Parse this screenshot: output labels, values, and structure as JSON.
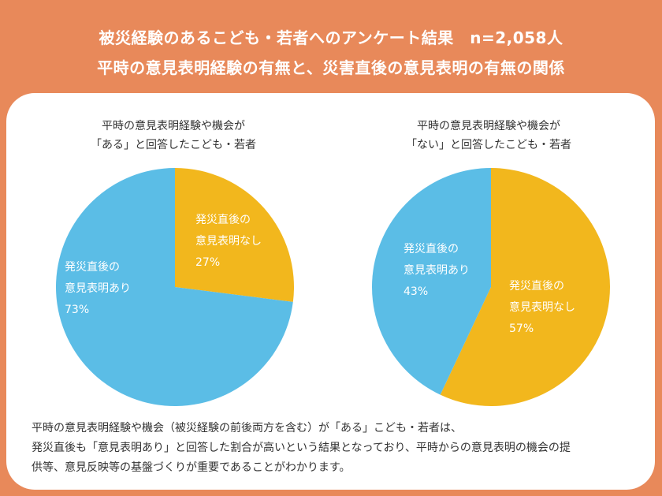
{
  "header": {
    "line1": "被災経験のあるこども・若者へのアンケート結果　n=2,058人",
    "line2": "平時の意見表明経験の有無と、災害直後の意見表明の有無の関係"
  },
  "chart_data": [
    {
      "type": "pie",
      "title_lines": [
        "平時の意見表明経験や機会が",
        "「ある」と回答したこども・若者"
      ],
      "slices": [
        {
          "label_lines": [
            "発災直後の",
            "意見表明なし"
          ],
          "value": 27,
          "value_label": "27%",
          "color": "#f2b71d"
        },
        {
          "label_lines": [
            "発災直後の",
            "意見表明あり"
          ],
          "value": 73,
          "value_label": "73%",
          "color": "#5bbde6"
        }
      ]
    },
    {
      "type": "pie",
      "title_lines": [
        "平時の意見表明経験や機会が",
        "「ない」と回答したこども・若者"
      ],
      "slices": [
        {
          "label_lines": [
            "発災直後の",
            "意見表明なし"
          ],
          "value": 57,
          "value_label": "57%",
          "color": "#f2b71d"
        },
        {
          "label_lines": [
            "発災直後の",
            "意見表明あり"
          ],
          "value": 43,
          "value_label": "43%",
          "color": "#5bbde6"
        }
      ]
    }
  ],
  "summary": {
    "lines": [
      "平時の意見表明経験や機会（被災経験の前後両方を含む）が「ある」こども・若者は、",
      "発災直後も「意見表明あり」と回答した割合が高いという結果となっており、平時からの意見表明の機会の提",
      "供等、意見反映等の基盤づくりが重要であることがわかります。"
    ]
  }
}
